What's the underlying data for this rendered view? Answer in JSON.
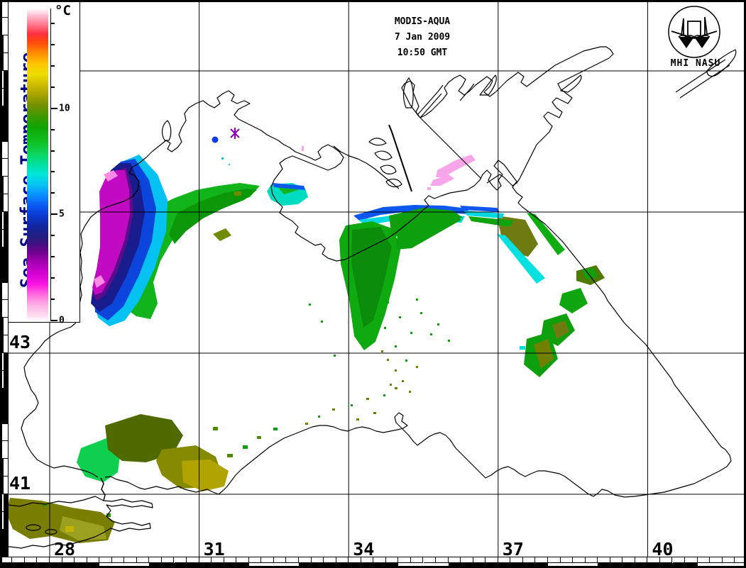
{
  "header": {
    "lines": [
      "MODIS-AQUA",
      "7 Jan 2009",
      "10:50 GMT"
    ]
  },
  "logo": {
    "caption": "MHI NASU"
  },
  "colorbar": {
    "title": "Sea Surface Temperature",
    "unit": "°C",
    "value_min": 0,
    "value_max": 14.7,
    "minor_tick_step": 1,
    "labeled_ticks": [
      {
        "v": 10,
        "label": "10"
      },
      {
        "v": 5,
        "label": "5"
      },
      {
        "v": 0,
        "label": "0"
      }
    ],
    "title_color": "#00008b",
    "palette_stops": [
      [
        0.0,
        "#ffffff"
      ],
      [
        0.2,
        "#ffdef2"
      ],
      [
        0.7,
        "#ffb4e6"
      ],
      [
        1.2,
        "#ff6ede"
      ],
      [
        1.7,
        "#fa14e2"
      ],
      [
        2.2,
        "#d400d4"
      ],
      [
        2.7,
        "#aa00b4"
      ],
      [
        3.1,
        "#7c0096"
      ],
      [
        3.5,
        "#4c0a82"
      ],
      [
        3.9,
        "#241c7e"
      ],
      [
        4.4,
        "#13249b"
      ],
      [
        4.9,
        "#0a38cd"
      ],
      [
        5.4,
        "#0b57f0"
      ],
      [
        5.9,
        "#0b8cff"
      ],
      [
        6.4,
        "#06c2f2"
      ],
      [
        6.9,
        "#00e6da"
      ],
      [
        7.4,
        "#00df9b"
      ],
      [
        7.9,
        "#0ed45a"
      ],
      [
        8.5,
        "#10bc1c"
      ],
      [
        9.1,
        "#0fa405"
      ],
      [
        9.6,
        "#3c9a00"
      ],
      [
        10.1,
        "#6f9000"
      ],
      [
        10.6,
        "#a3a000"
      ],
      [
        11.1,
        "#cdbc00"
      ],
      [
        11.6,
        "#eedd00"
      ],
      [
        12.1,
        "#fec500"
      ],
      [
        12.6,
        "#ff8d00"
      ],
      [
        13.1,
        "#ff4b0c"
      ],
      [
        13.5,
        "#ff2e3c"
      ],
      [
        13.9,
        "#ff7387"
      ],
      [
        14.3,
        "#ffb3c8"
      ],
      [
        14.7,
        "#ffffff"
      ]
    ]
  },
  "axes": {
    "lon_labels": [
      {
        "v": 28,
        "label": "28"
      },
      {
        "v": 31,
        "label": "31"
      },
      {
        "v": 34,
        "label": "34"
      },
      {
        "v": 37,
        "label": "37"
      },
      {
        "v": 40,
        "label": "40"
      }
    ],
    "lat_labels": [
      {
        "v": 43,
        "label": "43"
      },
      {
        "v": 41,
        "label": "41"
      }
    ],
    "grid_lon_values": [
      28,
      31,
      34,
      37,
      40
    ],
    "grid_lat_values": [
      47,
      45,
      43,
      41
    ]
  },
  "sst_regions": [
    {
      "area": "northwest shelf coastal strip",
      "temp_c": "0-4",
      "dominant_colors": [
        "#c20ac2",
        "#181c8c",
        "#0b45dc",
        "#06c2f2"
      ]
    },
    {
      "area": "northwest shelf offshore",
      "temp_c": "7-9",
      "dominant_colors": [
        "#12b41c",
        "#0c9708"
      ]
    },
    {
      "area": "south of Crimea streaks",
      "temp_c": "6-9",
      "dominant_colors": [
        "#0faa10",
        "#06d8e0",
        "#0b57f0"
      ]
    },
    {
      "area": "east of Kerch strait",
      "temp_c": "9-10",
      "dominant_colors": [
        "#6f7a10",
        "#06e0e0"
      ]
    },
    {
      "area": "southwest coast near Bosphorus",
      "temp_c": "9-11",
      "dominant_colors": [
        "#4f6b00",
        "#858a00",
        "#b2a400",
        "#0ed04e"
      ]
    },
    {
      "area": "Sea of Azov patch",
      "temp_c": "near 0",
      "dominant_colors": [
        "#f7a6ea"
      ]
    },
    {
      "area": "eastern offshore streaks",
      "temp_c": "8-10",
      "dominant_colors": [
        "#0f9e0c",
        "#6f7a10"
      ]
    }
  ]
}
